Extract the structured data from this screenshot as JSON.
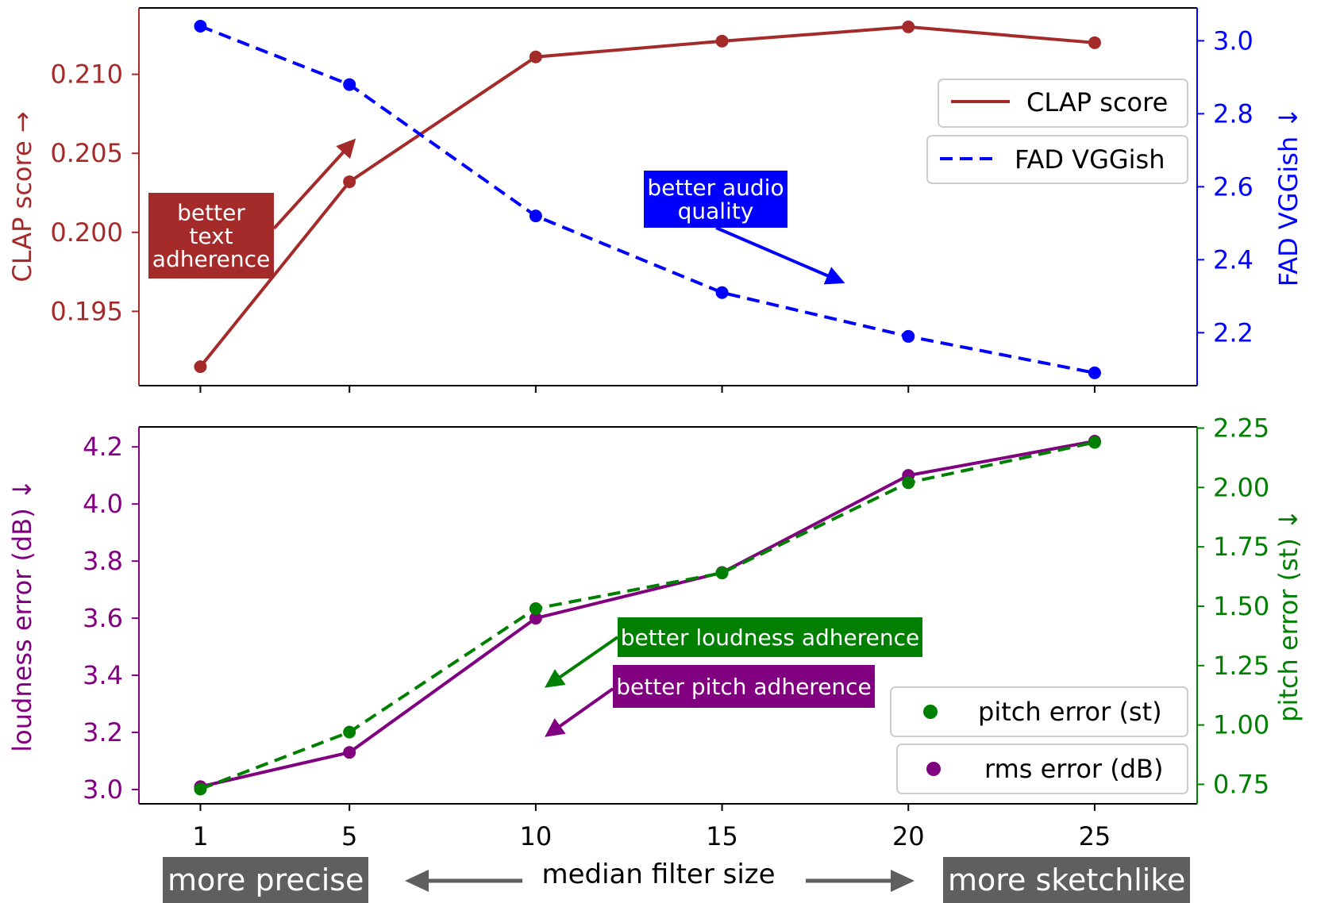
{
  "colors": {
    "clap": "#a52a2a",
    "fad": "#0000ff",
    "loudness": "#800080",
    "pitch": "#008000",
    "label_box": "#5f5f5f"
  },
  "x_title": "median filter size",
  "bottom_labels": {
    "left": "more precise",
    "right": "more sketchlike"
  },
  "annotations": {
    "text_adherence": "better text adherence",
    "audio_quality": "better audio quality",
    "loudness_adherence": "better loudness adherence",
    "pitch_adherence": "better pitch adherence"
  },
  "chart_data": [
    {
      "type": "line",
      "x": [
        1,
        5,
        10,
        15,
        20,
        25
      ],
      "xticks": [
        "1",
        "5",
        "10",
        "15",
        "20",
        "25"
      ],
      "left_axis": {
        "label": "CLAP score →",
        "range": [
          0.1903,
          0.2142
        ],
        "ticks": [
          0.195,
          0.2,
          0.205,
          0.21
        ],
        "tick_labels": [
          "0.195",
          "0.200",
          "0.205",
          "0.210"
        ]
      },
      "right_axis": {
        "label": "FAD VGGish ↓",
        "range": [
          2.055,
          3.09
        ],
        "ticks": [
          2.2,
          2.4,
          2.6,
          2.8,
          3.0
        ],
        "tick_labels": [
          "2.2",
          "2.4",
          "2.6",
          "2.8",
          "3.0"
        ]
      },
      "series": [
        {
          "name": "CLAP score",
          "axis": "left",
          "style": "solid",
          "values": [
            0.1915,
            0.2032,
            0.2111,
            0.2121,
            0.213,
            0.212
          ]
        },
        {
          "name": "FAD VGGish",
          "axis": "right",
          "style": "dashed",
          "values": [
            3.04,
            2.88,
            2.52,
            2.31,
            2.19,
            2.09
          ]
        }
      ]
    },
    {
      "type": "line",
      "x": [
        1,
        5,
        10,
        15,
        20,
        25
      ],
      "xticks": [
        "1",
        "5",
        "10",
        "15",
        "20",
        "25"
      ],
      "xlabel": "median filter size",
      "left_axis": {
        "label": "loudness error (dB) ↓",
        "range": [
          2.95,
          4.27
        ],
        "ticks": [
          3.0,
          3.2,
          3.4,
          3.6,
          3.8,
          4.0,
          4.2
        ],
        "tick_labels": [
          "3.0",
          "3.2",
          "3.4",
          "3.6",
          "3.8",
          "4.0",
          "4.2"
        ]
      },
      "right_axis": {
        "label": "pitch error (st) ↓",
        "range": [
          0.668,
          2.255
        ],
        "ticks": [
          0.75,
          1.0,
          1.25,
          1.5,
          1.75,
          2.0,
          2.25
        ],
        "tick_labels": [
          "0.75",
          "1.00",
          "1.25",
          "1.50",
          "1.75",
          "2.00",
          "2.25"
        ]
      },
      "series": [
        {
          "name": "rms error (dB)",
          "axis": "left",
          "style": "solid",
          "values": [
            3.01,
            3.13,
            3.6,
            3.76,
            4.1,
            4.22
          ]
        },
        {
          "name": "pitch error (st)",
          "axis": "right",
          "style": "dashed",
          "values": [
            0.73,
            0.97,
            1.49,
            1.64,
            2.02,
            2.19
          ]
        }
      ],
      "legend": [
        "pitch error (st)",
        "rms error (dB)"
      ]
    }
  ]
}
